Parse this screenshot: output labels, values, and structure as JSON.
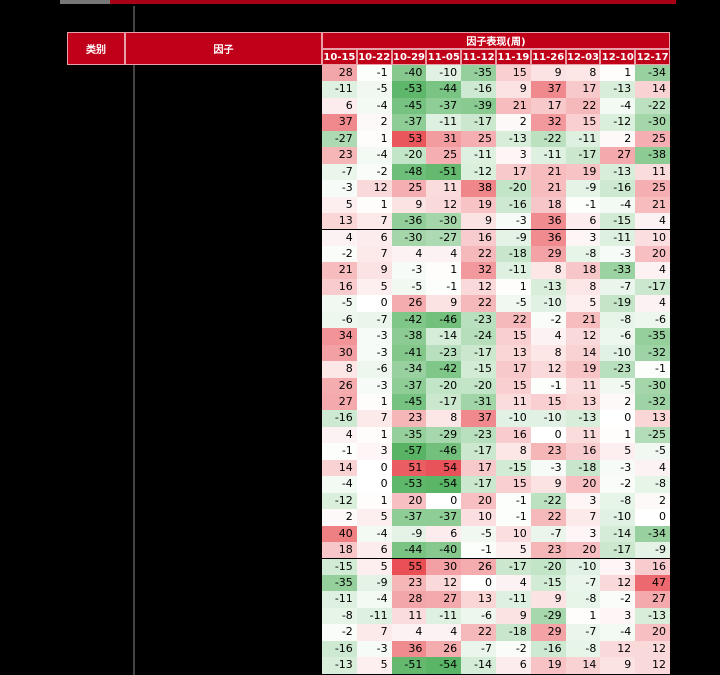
{
  "table": {
    "header": {
      "category": "类别",
      "factor": "因子",
      "group": "因子表现(周)",
      "weeks": [
        "10-15",
        "10-22",
        "10-29",
        "11-05",
        "11-12",
        "11-19",
        "11-26",
        "12-03",
        "12-10",
        "12-17"
      ]
    },
    "rows": [
      [
        28,
        -1,
        -40,
        -10,
        -35,
        15,
        9,
        8,
        1,
        -34
      ],
      [
        -11,
        -5,
        -53,
        -44,
        -16,
        9,
        37,
        17,
        -13,
        14
      ],
      [
        6,
        -4,
        -45,
        -37,
        -39,
        21,
        17,
        22,
        -4,
        -22
      ],
      [
        37,
        2,
        -37,
        -11,
        -17,
        2,
        32,
        15,
        -12,
        -30
      ],
      [
        -27,
        1,
        53,
        31,
        25,
        -13,
        -22,
        -11,
        2,
        25
      ],
      [
        23,
        -4,
        -20,
        25,
        -11,
        3,
        -11,
        -17,
        27,
        -38
      ],
      [
        -7,
        -2,
        -48,
        -51,
        -12,
        17,
        21,
        19,
        -13,
        11
      ],
      [
        -3,
        12,
        25,
        11,
        38,
        -20,
        21,
        -9,
        -16,
        25
      ],
      [
        5,
        1,
        9,
        12,
        19,
        -16,
        18,
        -1,
        -4,
        21
      ],
      [
        13,
        7,
        -36,
        -30,
        9,
        -3,
        36,
        6,
        -15,
        4
      ],
      [
        4,
        6,
        -30,
        -27,
        16,
        -9,
        36,
        3,
        -11,
        10
      ],
      [
        -2,
        7,
        4,
        4,
        22,
        -18,
        29,
        -8,
        -3,
        20
      ],
      [
        21,
        9,
        -3,
        1,
        32,
        -11,
        8,
        18,
        -33,
        4
      ],
      [
        16,
        5,
        -5,
        -1,
        12,
        1,
        -13,
        8,
        -7,
        -17
      ],
      [
        -5,
        0,
        26,
        9,
        22,
        -5,
        -10,
        5,
        -19,
        4
      ],
      [
        -6,
        -7,
        -42,
        -46,
        -23,
        22,
        -2,
        21,
        -8,
        -6
      ],
      [
        34,
        -3,
        -38,
        -14,
        -24,
        15,
        4,
        12,
        -6,
        -35
      ],
      [
        30,
        -3,
        -41,
        -23,
        -17,
        13,
        8,
        14,
        -10,
        -32
      ],
      [
        8,
        -6,
        -34,
        -42,
        -15,
        17,
        12,
        19,
        -23,
        -1
      ],
      [
        26,
        -3,
        -37,
        -20,
        -20,
        15,
        -1,
        11,
        -5,
        -30
      ],
      [
        27,
        1,
        -45,
        -17,
        -31,
        11,
        15,
        13,
        2,
        -32
      ],
      [
        -16,
        7,
        23,
        8,
        37,
        -10,
        -10,
        -13,
        0,
        13
      ],
      [
        4,
        1,
        -35,
        -29,
        -23,
        16,
        0,
        11,
        1,
        -25
      ],
      [
        -1,
        3,
        -57,
        -46,
        -17,
        8,
        23,
        16,
        5,
        -5
      ],
      [
        14,
        0,
        51,
        54,
        17,
        -15,
        -3,
        -18,
        -3,
        4
      ],
      [
        -4,
        0,
        -53,
        -54,
        -17,
        15,
        9,
        20,
        -2,
        -8
      ],
      [
        -12,
        1,
        20,
        0,
        20,
        -1,
        -22,
        3,
        -8,
        2
      ],
      [
        2,
        5,
        -37,
        -37,
        10,
        -1,
        22,
        7,
        -10,
        0
      ],
      [
        40,
        -4,
        -9,
        6,
        -5,
        10,
        -7,
        3,
        -14,
        -34
      ],
      [
        18,
        6,
        -44,
        -40,
        -1,
        5,
        23,
        20,
        -17,
        -9
      ],
      [
        -15,
        5,
        55,
        30,
        26,
        -17,
        -20,
        -10,
        3,
        16
      ],
      [
        -35,
        -9,
        23,
        12,
        0,
        4,
        -15,
        -7,
        12,
        47
      ],
      [
        -11,
        -4,
        28,
        27,
        13,
        -11,
        9,
        -8,
        -2,
        27
      ],
      [
        -8,
        -11,
        11,
        -11,
        -6,
        9,
        -29,
        1,
        3,
        -13
      ],
      [
        -2,
        7,
        4,
        4,
        22,
        -18,
        29,
        -7,
        -4,
        20
      ],
      [
        -16,
        -3,
        36,
        26,
        -7,
        -2,
        -16,
        -8,
        12,
        12
      ],
      [
        -13,
        5,
        -51,
        -54,
        -14,
        6,
        19,
        14,
        9,
        12
      ]
    ]
  }
}
